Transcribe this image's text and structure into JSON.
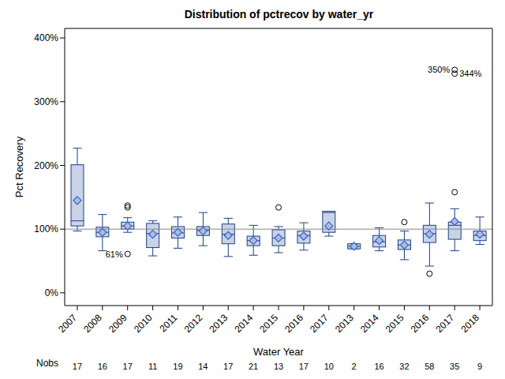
{
  "chart_data": {
    "type": "box",
    "title": "Distribution of pctrecov by water_yr",
    "x_label": "Water Year",
    "y_label": "Pct Recovery",
    "categories": [
      "2007",
      "2008",
      "2009",
      "2010",
      "2011",
      "2012",
      "2013",
      "2014",
      "2015",
      "2016",
      "2017",
      "2013",
      "2014",
      "2015",
      "2016",
      "2017",
      "2018"
    ],
    "q1": [
      105,
      88,
      100,
      71,
      86,
      90,
      77,
      74,
      74,
      78,
      95,
      69,
      72,
      68,
      79,
      84,
      82
    ],
    "median": [
      113,
      95,
      105,
      93,
      94,
      98,
      92,
      82,
      86,
      90,
      126,
      73,
      80,
      75,
      93,
      106,
      90
    ],
    "q3": [
      201,
      103,
      111,
      109,
      104,
      104,
      108,
      89,
      99,
      97,
      128,
      77,
      90,
      83,
      106,
      111,
      97
    ],
    "mean": [
      145,
      95,
      105,
      92,
      95,
      97,
      90,
      82,
      86,
      89,
      105,
      73,
      82,
      75,
      92,
      112,
      92
    ],
    "whisker_low": [
      97,
      66,
      95,
      58,
      70,
      74,
      57,
      59,
      63,
      67,
      89,
      69,
      66,
      52,
      42,
      66,
      76
    ],
    "whisker_high": [
      227,
      123,
      118,
      113,
      119,
      126,
      117,
      106,
      104,
      110,
      128,
      77,
      102,
      97,
      141,
      132,
      119
    ],
    "outliers": [
      [],
      [],
      [
        134,
        137,
        61
      ],
      [],
      [],
      [],
      [],
      [],
      [
        134
      ],
      [],
      [],
      [],
      [],
      [
        111
      ],
      [
        30
      ],
      [
        158,
        344,
        350
      ],
      []
    ],
    "annotations": [
      {
        "category_index": 2,
        "value": 61,
        "text": "61%"
      },
      {
        "category_index": 15,
        "value": 350,
        "text": "350%"
      },
      {
        "category_index": 15,
        "value": 344,
        "text": "344%"
      }
    ],
    "nobs_label": "Nobs",
    "nobs": [
      17,
      16,
      17,
      11,
      19,
      14,
      17,
      21,
      13,
      17,
      10,
      2,
      16,
      32,
      58,
      35,
      9
    ],
    "reference_line": 100,
    "ylim": [
      -20,
      415
    ],
    "yticks": [
      {
        "value": 0,
        "label": "0%"
      },
      {
        "value": 100,
        "label": "100%"
      },
      {
        "value": 200,
        "label": "200%"
      },
      {
        "value": 300,
        "label": "300%"
      },
      {
        "value": 400,
        "label": "400%"
      }
    ],
    "color": "#c8d3e6"
  }
}
